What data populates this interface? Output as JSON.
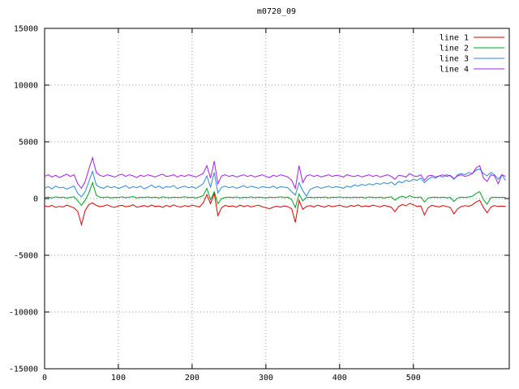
{
  "window": {
    "background": "#ffffff"
  },
  "chart_data": {
    "type": "line",
    "title": "m0720_09",
    "grid": true,
    "legend_position": "top-right",
    "x_axis": {
      "range": [
        0,
        630
      ],
      "ticks": [
        0,
        100,
        200,
        300,
        400,
        500
      ],
      "start": 0,
      "step": 5
    },
    "y_axis": {
      "range": [
        -15000,
        15000
      ],
      "ticks": [
        -15000,
        -10000,
        -5000,
        0,
        5000,
        10000,
        15000
      ]
    },
    "series": [
      {
        "name": "line 1",
        "color": "#dd0000",
        "values": [
          -650,
          -720,
          -600,
          -780,
          -690,
          -740,
          -580,
          -700,
          -820,
          -1150,
          -2300,
          -1050,
          -520,
          -380,
          -600,
          -720,
          -650,
          -560,
          -700,
          -780,
          -640,
          -600,
          -720,
          -680,
          -550,
          -760,
          -690,
          -620,
          -730,
          -580,
          -700,
          -650,
          -780,
          -600,
          -720,
          -560,
          -690,
          -750,
          -620,
          -700,
          -580,
          -660,
          -740,
          -400,
          350,
          -450,
          450,
          -1500,
          -800,
          -600,
          -700,
          -640,
          -760,
          -580,
          -700,
          -620,
          -740,
          -660,
          -580,
          -720,
          -800,
          -900,
          -750,
          -680,
          -760,
          -640,
          -720,
          -900,
          -2100,
          -150,
          -950,
          -700,
          -620,
          -740,
          -580,
          -680,
          -760,
          -600,
          -720,
          -650,
          -580,
          -700,
          -760,
          -620,
          -680,
          -560,
          -720,
          -640,
          -700,
          -580,
          -660,
          -740,
          -600,
          -680,
          -760,
          -1150,
          -700,
          -520,
          -640,
          -420,
          -560,
          -700,
          -640,
          -1450,
          -800,
          -600,
          -680,
          -740,
          -620,
          -700,
          -780,
          -1350,
          -900,
          -700,
          -620,
          -680,
          -560,
          -300,
          -150,
          -800,
          -1250,
          -750,
          -620,
          -700,
          -660,
          -700
        ]
      },
      {
        "name": "line 2",
        "color": "#00a020",
        "values": [
          80,
          120,
          60,
          150,
          90,
          130,
          40,
          110,
          160,
          -200,
          -600,
          -150,
          500,
          1400,
          300,
          120,
          80,
          140,
          60,
          110,
          90,
          150,
          70,
          120,
          180,
          60,
          110,
          90,
          140,
          80,
          120,
          60,
          150,
          100,
          70,
          130,
          90,
          110,
          160,
          80,
          120,
          60,
          140,
          250,
          900,
          -100,
          600,
          -450,
          0,
          100,
          120,
          80,
          140,
          60,
          110,
          90,
          150,
          70,
          120,
          100,
          60,
          130,
          90,
          110,
          150,
          80,
          120,
          -100,
          -800,
          400,
          -200,
          100,
          130,
          70,
          110,
          90,
          140,
          60,
          120,
          100,
          150,
          80,
          110,
          70,
          130,
          90,
          120,
          60,
          140,
          100,
          80,
          120,
          60,
          110,
          150,
          -150,
          100,
          200,
          80,
          260,
          120,
          90,
          140,
          -300,
          60,
          110,
          130,
          80,
          120,
          70,
          100,
          -250,
          50,
          120,
          90,
          140,
          200,
          450,
          600,
          -100,
          -500,
          80,
          120,
          90,
          110,
          100
        ]
      },
      {
        "name": "line 3",
        "color": "#2f86d8",
        "values": [
          900,
          1050,
          850,
          1100,
          950,
          1000,
          820,
          980,
          1100,
          450,
          150,
          600,
          1500,
          2400,
          1200,
          1000,
          900,
          1100,
          950,
          1050,
          880,
          1000,
          1150,
          900,
          1050,
          950,
          1100,
          850,
          1000,
          1200,
          950,
          1100,
          900,
          1050,
          1000,
          1150,
          880,
          1000,
          1100,
          950,
          1050,
          900,
          1100,
          1300,
          2000,
          1000,
          2300,
          500,
          1000,
          1100,
          950,
          1050,
          900,
          1000,
          1150,
          950,
          1100,
          1000,
          900,
          1050,
          1000,
          950,
          1100,
          900,
          1050,
          1000,
          950,
          600,
          300,
          1400,
          700,
          200,
          800,
          950,
          1050,
          900,
          1000,
          1100,
          950,
          1050,
          1000,
          900,
          1100,
          1000,
          1200,
          1100,
          1250,
          1150,
          1300,
          1200,
          1350,
          1250,
          1400,
          1300,
          1450,
          1200,
          1500,
          1400,
          1600,
          1500,
          1700,
          1600,
          1800,
          1400,
          1700,
          1900,
          1800,
          2000,
          1900,
          2100,
          2000,
          1700,
          2100,
          2200,
          2100,
          2300,
          2200,
          2500,
          2600,
          2200,
          2000,
          2300,
          2100,
          1700,
          2100,
          1600
        ]
      },
      {
        "name": "line 4",
        "color": "#a020f0",
        "values": [
          1950,
          2100,
          1900,
          2050,
          1850,
          2000,
          2150,
          1950,
          2100,
          1300,
          900,
          1500,
          2600,
          3600,
          2300,
          2050,
          1950,
          2100,
          2000,
          1900,
          2050,
          2150,
          1950,
          2100,
          2000,
          1850,
          2050,
          1950,
          2100,
          2000,
          1900,
          2050,
          2150,
          1950,
          2000,
          2100,
          1900,
          2050,
          1950,
          2100,
          2000,
          1900,
          2050,
          2200,
          2900,
          1800,
          3300,
          1300,
          2000,
          2100,
          1950,
          2050,
          1900,
          2000,
          2100,
          1950,
          2050,
          1900,
          2000,
          2100,
          1950,
          1850,
          2050,
          1950,
          2100,
          2000,
          1900,
          1600,
          900,
          2900,
          1400,
          2000,
          2100,
          1950,
          2050,
          1900,
          2000,
          2100,
          1950,
          2050,
          2000,
          1900,
          2100,
          2000,
          1950,
          2050,
          1900,
          2000,
          2100,
          1950,
          2050,
          1900,
          2000,
          2100,
          1950,
          1700,
          2050,
          2000,
          1900,
          2200,
          2000,
          1950,
          2100,
          1600,
          2000,
          2050,
          1900,
          2000,
          2100,
          1950,
          2050,
          1750,
          2000,
          2100,
          1950,
          2050,
          2200,
          2700,
          2900,
          1800,
          1500,
          2100,
          2000,
          1300,
          2100,
          1950
        ]
      }
    ]
  }
}
